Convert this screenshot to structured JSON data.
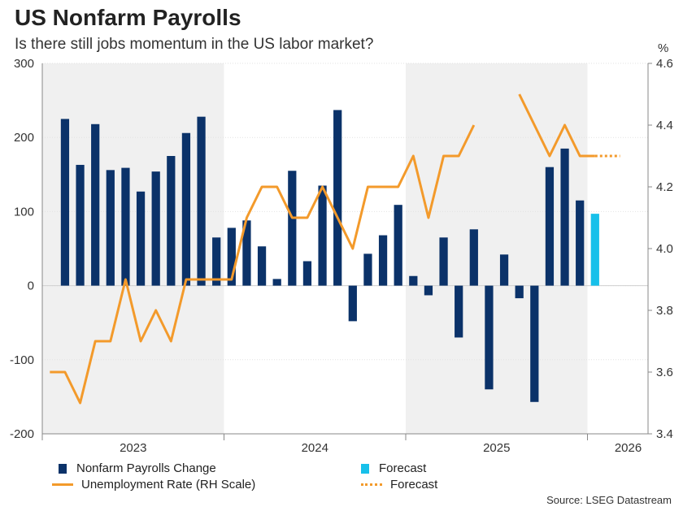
{
  "title": "US Nonfarm Payrolls",
  "subtitle": "Is there still jobs momentum in the US labor market?",
  "source": "Source: LSEG Datastream",
  "colors": {
    "bars": "#0b3269",
    "forecast_bar": "#17c0ea",
    "line": "#f39a2b",
    "shade": "#f0f0f0"
  },
  "legend": {
    "bars": "Nonfarm Payrolls Change",
    "bar_forecast": "Forecast",
    "line": "Unemployment Rate (RH Scale)",
    "line_forecast": "Forecast"
  },
  "chart_data": {
    "type": "bar+line",
    "x": [
      "2023-01",
      "2023-02",
      "2023-03",
      "2023-04",
      "2023-05",
      "2023-06",
      "2023-07",
      "2023-08",
      "2023-09",
      "2023-10",
      "2023-11",
      "2023-12",
      "2024-01",
      "2024-02",
      "2024-03",
      "2024-04",
      "2024-05",
      "2024-06",
      "2024-07",
      "2024-08",
      "2024-09",
      "2024-10",
      "2024-11",
      "2024-12",
      "2025-01",
      "2025-02",
      "2025-03",
      "2025-04",
      "2025-05",
      "2025-06",
      "2025-07",
      "2025-08",
      "2025-09",
      "2025-10",
      "2025-11",
      "2025-12",
      "2026-01",
      "2026-02",
      "2026-03",
      "2026-04"
    ],
    "x_tick_labels": [
      "2023",
      "2024",
      "2025",
      "2026"
    ],
    "left_axis": {
      "ticks": [
        300,
        200,
        100,
        0,
        -100,
        -200
      ],
      "ylim": [
        -200,
        300
      ]
    },
    "right_axis": {
      "label": "%",
      "ticks": [
        4.6,
        4.4,
        4.2,
        4.0,
        3.8,
        3.6,
        3.4
      ],
      "ylim": [
        3.4,
        4.6
      ]
    },
    "shaded_years": [
      "2023",
      "2025"
    ],
    "series": [
      {
        "name": "Nonfarm Payrolls Change",
        "type": "bar",
        "axis": "left",
        "values": [
          null,
          225,
          163,
          218,
          156,
          159,
          127,
          154,
          175,
          206,
          228,
          65,
          78,
          88,
          53,
          9,
          155,
          33,
          135,
          237,
          -48,
          43,
          68,
          109,
          13,
          -13,
          65,
          -70,
          76,
          -140,
          42,
          -17,
          -157,
          160,
          185,
          115,
          97,
          null,
          null,
          null
        ],
        "forecast_index": 36
      },
      {
        "name": "Unemployment Rate (RH Scale)",
        "type": "line",
        "axis": "right",
        "values": [
          3.6,
          3.6,
          3.5,
          3.7,
          3.7,
          3.9,
          3.7,
          3.8,
          3.7,
          3.9,
          3.9,
          3.9,
          3.9,
          4.1,
          4.2,
          4.2,
          4.1,
          4.1,
          4.2,
          4.1,
          4.0,
          4.2,
          4.2,
          4.2,
          4.3,
          4.1,
          4.3,
          4.3,
          4.4,
          null,
          null,
          4.5,
          4.4,
          4.3,
          4.4,
          4.3,
          4.3,
          null,
          null,
          null
        ],
        "forecast_values": [
          4.3,
          4.3,
          4.3
        ]
      }
    ]
  }
}
